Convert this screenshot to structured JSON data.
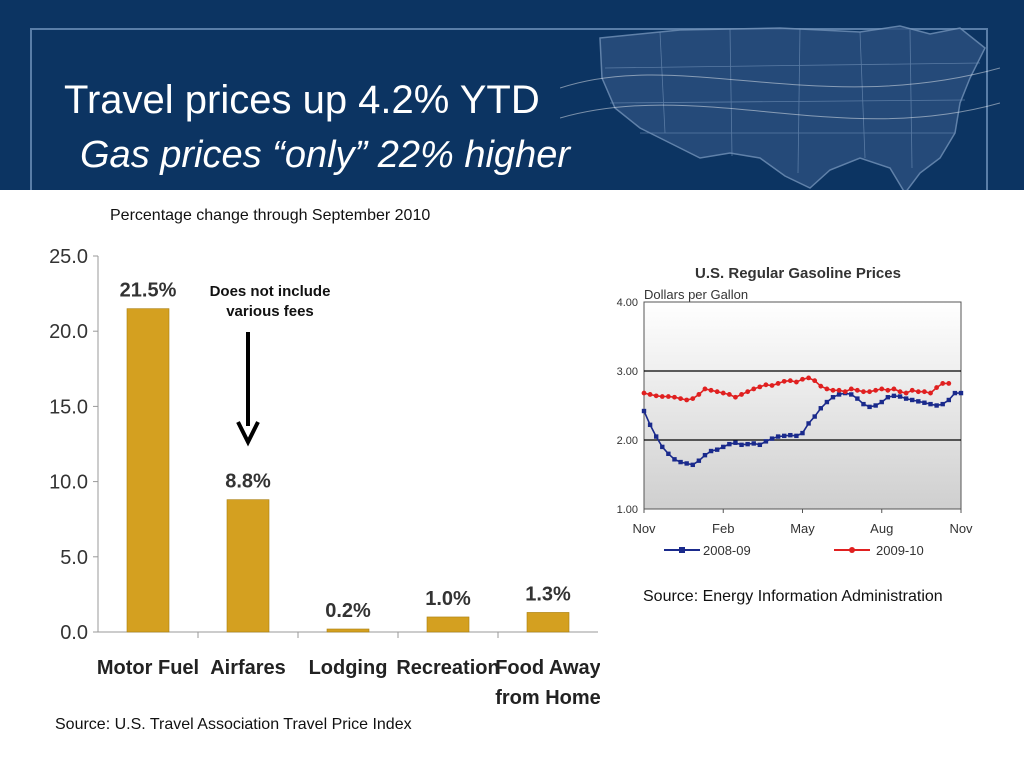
{
  "header": {
    "title": "Travel prices up 4.2% YTD",
    "subtitle": "Gas prices “only” 22% higher"
  },
  "caption": "Percentage change through September 2010",
  "source_left": "Source:  U.S. Travel Association Travel Price Index",
  "source_right": "Source:  Energy Information Administration",
  "colors": {
    "header_bg": "#0c3462",
    "bar": "#d4a020",
    "series_2008": "#1a2a8c",
    "series_2009": "#e02020"
  },
  "chart_data": [
    {
      "type": "bar",
      "title": "",
      "categories": [
        [
          "Motor Fuel"
        ],
        [
          "Airfares"
        ],
        [
          "Lodging"
        ],
        [
          "Recreation"
        ],
        [
          "Food Away",
          "from Home"
        ]
      ],
      "values": [
        21.5,
        8.8,
        0.2,
        1.0,
        1.3
      ],
      "data_labels": [
        "21.5%",
        "8.8%",
        "0.2%",
        "1.0%",
        "1.3%"
      ],
      "ylim": [
        0,
        25
      ],
      "yticks": [
        "0.0",
        "5.0",
        "10.0",
        "15.0",
        "20.0",
        "25.0"
      ],
      "annotation": [
        "Does not include",
        "various fees"
      ],
      "grid": false
    },
    {
      "type": "line",
      "title": "U.S. Regular Gasoline Prices",
      "subtitle": "Dollars per Gallon",
      "ylim": [
        1,
        4
      ],
      "yticks": [
        "1.00",
        "2.00",
        "3.00",
        "4.00"
      ],
      "xticks": [
        "Nov",
        "Feb",
        "May",
        "Aug",
        "Nov"
      ],
      "xlim": [
        0,
        52
      ],
      "legend": "bottom",
      "series": [
        {
          "name": "2008-09",
          "color": "#1a2a8c",
          "x": [
            0,
            1,
            2,
            3,
            4,
            5,
            6,
            7,
            8,
            9,
            10,
            11,
            12,
            13,
            14,
            15,
            16,
            17,
            18,
            19,
            20,
            21,
            22,
            23,
            24,
            25,
            26,
            27,
            28,
            29,
            30,
            31,
            32,
            33,
            34,
            35,
            36,
            37,
            38,
            39,
            40,
            41,
            42,
            43,
            44,
            45,
            46,
            47,
            48,
            49,
            50,
            51,
            52
          ],
          "values": [
            2.42,
            2.22,
            2.05,
            1.9,
            1.8,
            1.72,
            1.68,
            1.66,
            1.64,
            1.7,
            1.78,
            1.84,
            1.86,
            1.9,
            1.94,
            1.96,
            1.93,
            1.94,
            1.95,
            1.93,
            1.98,
            2.02,
            2.05,
            2.06,
            2.07,
            2.06,
            2.1,
            2.24,
            2.34,
            2.46,
            2.55,
            2.62,
            2.66,
            2.68,
            2.66,
            2.6,
            2.52,
            2.48,
            2.5,
            2.55,
            2.62,
            2.64,
            2.63,
            2.6,
            2.58,
            2.56,
            2.54,
            2.52,
            2.5,
            2.52,
            2.58,
            2.68,
            2.68
          ]
        },
        {
          "name": "2009-10",
          "color": "#e02020",
          "x": [
            0,
            1,
            2,
            3,
            4,
            5,
            6,
            7,
            8,
            9,
            10,
            11,
            12,
            13,
            14,
            15,
            16,
            17,
            18,
            19,
            20,
            21,
            22,
            23,
            24,
            25,
            26,
            27,
            28,
            29,
            30,
            31,
            32,
            33,
            34,
            35,
            36,
            37,
            38,
            39,
            40,
            41,
            42,
            43,
            44,
            45,
            46,
            47,
            48,
            49,
            50
          ],
          "values": [
            2.68,
            2.66,
            2.64,
            2.63,
            2.63,
            2.62,
            2.6,
            2.58,
            2.6,
            2.66,
            2.74,
            2.72,
            2.7,
            2.68,
            2.66,
            2.62,
            2.66,
            2.7,
            2.74,
            2.77,
            2.8,
            2.79,
            2.82,
            2.85,
            2.86,
            2.84,
            2.88,
            2.9,
            2.86,
            2.78,
            2.74,
            2.72,
            2.72,
            2.7,
            2.74,
            2.72,
            2.7,
            2.7,
            2.72,
            2.74,
            2.72,
            2.74,
            2.7,
            2.68,
            2.72,
            2.7,
            2.7,
            2.68,
            2.76,
            2.82,
            2.82
          ]
        }
      ]
    }
  ]
}
